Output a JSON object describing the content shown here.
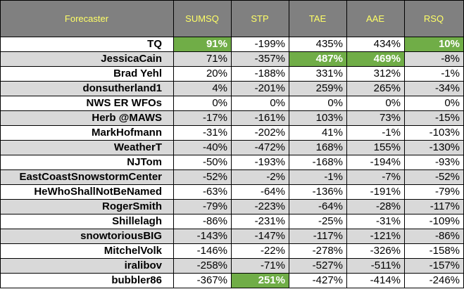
{
  "table": {
    "columns": [
      "Forecaster",
      "SUMSQ",
      "STP",
      "TAE",
      "AAE",
      "RSQ"
    ],
    "header_bg": "#808080",
    "header_text_color": "#ffff66",
    "highlight_color": "#70ad47",
    "shade_color": "#d9d9d9",
    "rows": [
      {
        "name": "TQ",
        "values": [
          "91%",
          "-199%",
          "435%",
          "434%",
          "10%"
        ],
        "shaded": false,
        "highlight": [
          0,
          4
        ]
      },
      {
        "name": "JessicaCain",
        "values": [
          "71%",
          "-357%",
          "487%",
          "469%",
          "-8%"
        ],
        "shaded": true,
        "highlight": [
          2,
          3
        ]
      },
      {
        "name": "Brad Yehl",
        "values": [
          "20%",
          "-188%",
          "331%",
          "312%",
          "-1%"
        ],
        "shaded": false,
        "highlight": []
      },
      {
        "name": "donsutherland1",
        "values": [
          "4%",
          "-201%",
          "259%",
          "265%",
          "-34%"
        ],
        "shaded": true,
        "highlight": []
      },
      {
        "name": "NWS ER WFOs",
        "values": [
          "0%",
          "0%",
          "0%",
          "0%",
          "0%"
        ],
        "shaded": false,
        "highlight": []
      },
      {
        "name": "Herb @MAWS",
        "values": [
          "-17%",
          "-161%",
          "103%",
          "73%",
          "-15%"
        ],
        "shaded": true,
        "highlight": []
      },
      {
        "name": "MarkHofmann",
        "values": [
          "-31%",
          "-202%",
          "41%",
          "-1%",
          "-103%"
        ],
        "shaded": false,
        "highlight": []
      },
      {
        "name": "WeatherT",
        "values": [
          "-40%",
          "-472%",
          "168%",
          "155%",
          "-130%"
        ],
        "shaded": true,
        "highlight": []
      },
      {
        "name": "NJTom",
        "values": [
          "-50%",
          "-193%",
          "-168%",
          "-194%",
          "-93%"
        ],
        "shaded": false,
        "highlight": []
      },
      {
        "name": "EastCoastSnowstormCenter",
        "values": [
          "-52%",
          "-2%",
          "-1%",
          "-7%",
          "-52%"
        ],
        "shaded": true,
        "highlight": []
      },
      {
        "name": "HeWhoShallNotBeNamed",
        "values": [
          "-63%",
          "-64%",
          "-136%",
          "-191%",
          "-79%"
        ],
        "shaded": false,
        "highlight": []
      },
      {
        "name": "RogerSmith",
        "values": [
          "-79%",
          "-223%",
          "-64%",
          "-28%",
          "-117%"
        ],
        "shaded": true,
        "highlight": []
      },
      {
        "name": "Shillelagh",
        "values": [
          "-86%",
          "-231%",
          "-25%",
          "-31%",
          "-109%"
        ],
        "shaded": false,
        "highlight": []
      },
      {
        "name": "snowtoriousBIG",
        "values": [
          "-143%",
          "-147%",
          "-117%",
          "-121%",
          "-86%"
        ],
        "shaded": true,
        "highlight": []
      },
      {
        "name": "MitchelVolk",
        "values": [
          "-146%",
          "-22%",
          "-278%",
          "-326%",
          "-158%"
        ],
        "shaded": false,
        "highlight": []
      },
      {
        "name": "iralibov",
        "values": [
          "-258%",
          "-71%",
          "-527%",
          "-511%",
          "-157%"
        ],
        "shaded": true,
        "highlight": []
      },
      {
        "name": "bubbler86",
        "values": [
          "-367%",
          "251%",
          "-427%",
          "-414%",
          "-246%"
        ],
        "shaded": false,
        "highlight": [
          1
        ]
      }
    ]
  }
}
